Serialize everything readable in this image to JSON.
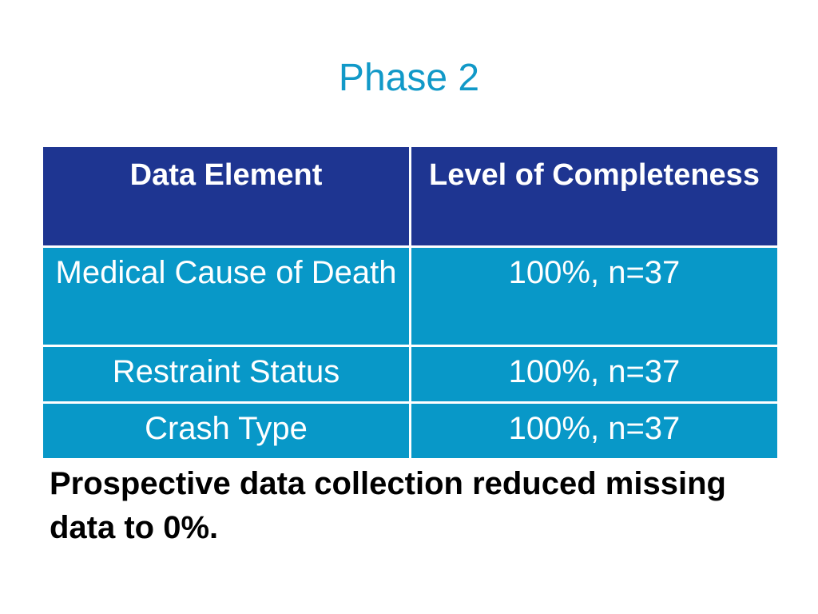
{
  "slide": {
    "title": "Phase 2",
    "table": {
      "headers": [
        "Data Element",
        "Level of Completeness"
      ],
      "rows": [
        [
          "Medical Cause of Death",
          "100%, n=37"
        ],
        [
          "Restraint Status",
          "100%, n=37"
        ],
        [
          "Crash Type",
          "100%, n=37"
        ]
      ]
    },
    "footnote": "Prospective data collection reduced missing data to 0%."
  },
  "colors": {
    "title": "#1199c8",
    "header_bg": "#1e3591",
    "cell_bg": "#0898c8"
  }
}
